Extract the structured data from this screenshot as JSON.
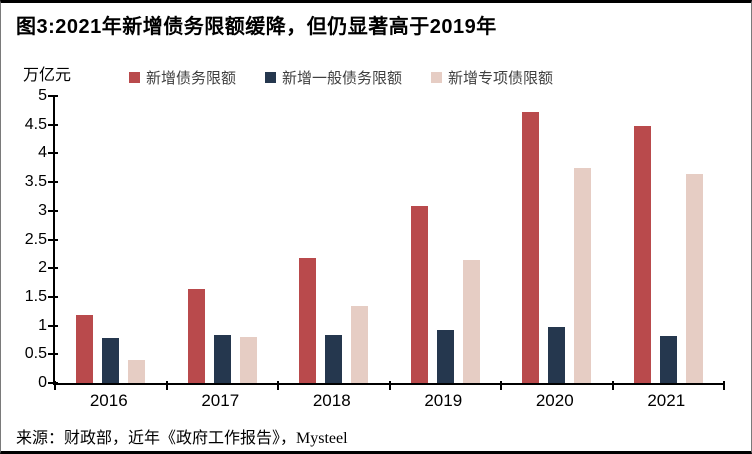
{
  "figure": {
    "title": "图3:2021年新增债务限额缓降，但仍显著高于2019年",
    "source": "来源：财政部，近年《政府工作报告》，Mysteel"
  },
  "chart_data": {
    "type": "bar",
    "title": "图3:2021年新增债务限额缓降，但仍显著高于2019年",
    "unit_label": "万亿元",
    "xlabel": "",
    "ylabel": "万亿元",
    "categories": [
      "2016",
      "2017",
      "2018",
      "2019",
      "2020",
      "2021"
    ],
    "series": [
      {
        "name": "新增债务限额",
        "color": "#B94A4C",
        "values": [
          1.18,
          1.63,
          2.18,
          3.08,
          4.73,
          4.47
        ]
      },
      {
        "name": "新增一般债务限额",
        "color": "#25374E",
        "values": [
          0.78,
          0.83,
          0.83,
          0.93,
          0.98,
          0.82
        ]
      },
      {
        "name": "新增专项债限额",
        "color": "#E6CDC4",
        "values": [
          0.4,
          0.8,
          1.35,
          2.15,
          3.75,
          3.65
        ]
      }
    ],
    "ylim": [
      0,
      5
    ],
    "ytick_step": 0.5,
    "legend_position": "top",
    "grid": false,
    "axis_color": "#000000",
    "legend_text_color": "#3f3f3f"
  }
}
